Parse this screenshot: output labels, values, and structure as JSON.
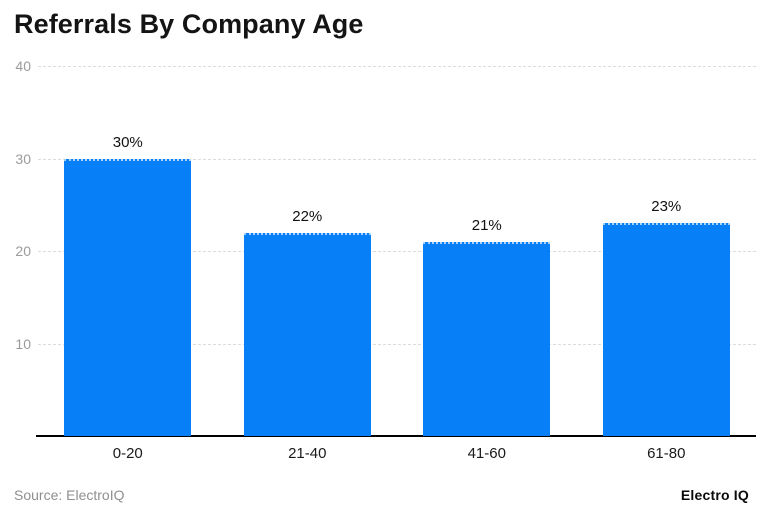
{
  "chart_data": {
    "type": "bar",
    "title": "Referrals By Company Age",
    "categories": [
      "0-20",
      "21-40",
      "41-60",
      "61-80"
    ],
    "values": [
      30,
      22,
      21,
      23
    ],
    "value_labels": [
      "30%",
      "22%",
      "21%",
      "23%"
    ],
    "xlabel": "",
    "ylabel": "",
    "ylim": [
      0,
      40
    ],
    "yticks": [
      40,
      30,
      20,
      10
    ],
    "grid": true,
    "legend": "none",
    "bar_color": "#077ff7"
  },
  "colors": {
    "bar": "#077ff7",
    "gridline": "#dcdcdc",
    "tick_label": "#9b9b9b",
    "title": "#141414",
    "axis_line": "#000000",
    "data_label": "#111111",
    "source_text": "#8f8f8f",
    "brand_text": "#0a0a0a",
    "background": "#ffffff"
  },
  "footer": {
    "source": "Source: ElectroIQ",
    "brand": "Electro IQ"
  }
}
